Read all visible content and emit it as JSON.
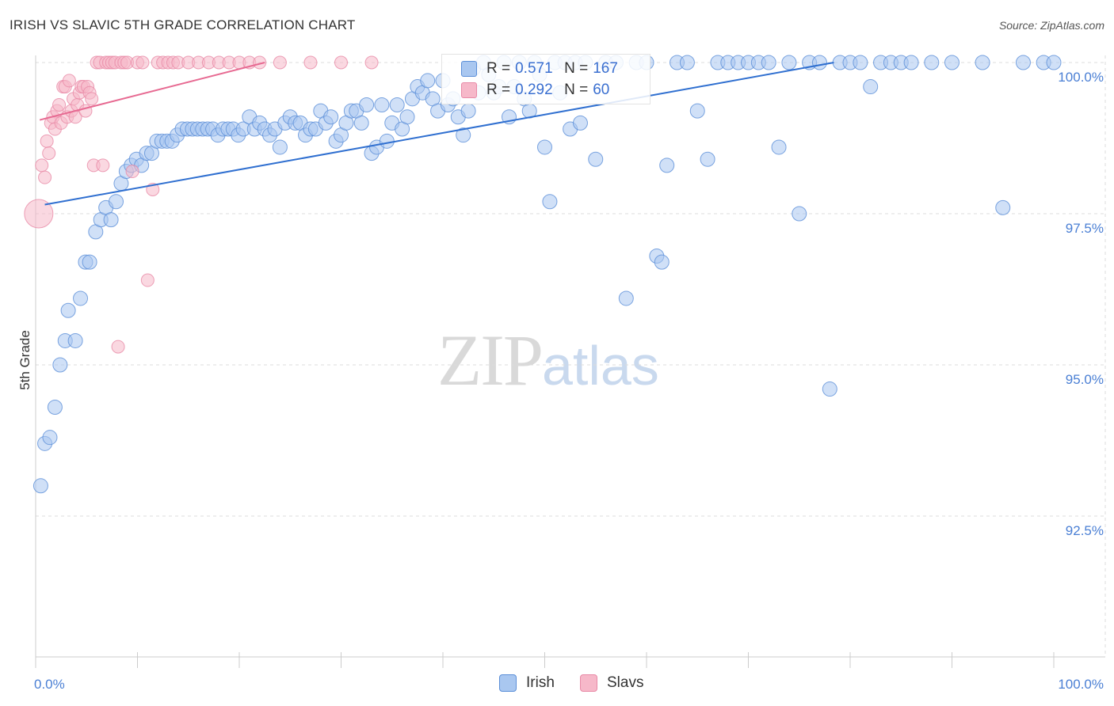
{
  "header": {
    "title": "IRISH VS SLAVIC 5TH GRADE CORRELATION CHART",
    "source": "Source: ZipAtlas.com"
  },
  "watermark": {
    "zip": "ZIP",
    "atlas": "atlas"
  },
  "legend": {
    "irish": {
      "r_label": "R =",
      "r_value": "0.571",
      "n_label": "N =",
      "n_value": "167"
    },
    "slavs": {
      "r_label": "R =",
      "r_value": "0.292",
      "n_label": "N =",
      "n_value": "60"
    }
  },
  "bottom_legend": {
    "irish": "Irish",
    "slavs": "Slavs"
  },
  "colors": {
    "irish_fill": "#a9c7f0",
    "irish_stroke": "#5b8fd8",
    "irish_line": "#2f6fd0",
    "slavs_fill": "#f6b8c9",
    "slavs_stroke": "#e889a6",
    "slavs_line": "#e76a92",
    "grid": "#dcdcdc",
    "tick_text": "#4a7fd4"
  },
  "chart_data": {
    "type": "scatter",
    "title": "IRISH VS SLAVIC 5TH GRADE CORRELATION CHART",
    "xlabel": "",
    "ylabel": "5th Grade",
    "xlim": [
      0,
      100
    ],
    "ylim": [
      90.8,
      100.6
    ],
    "x_tick_labels": [
      "0.0%",
      "100.0%"
    ],
    "y_ticks": [
      92.5,
      95.0,
      97.5,
      100.0
    ],
    "y_tick_labels": [
      "92.5%",
      "95.0%",
      "97.5%",
      "100.0%"
    ],
    "grid": true,
    "legend_position": "top-center",
    "series": [
      {
        "name": "Irish",
        "R": 0.571,
        "N": 167,
        "trend": [
          [
            0.9,
            97.65
          ],
          [
            78.4,
            100.0
          ]
        ],
        "points": [
          [
            0.5,
            93.0
          ],
          [
            0.9,
            93.7
          ],
          [
            1.4,
            93.8
          ],
          [
            1.9,
            94.3
          ],
          [
            2.4,
            95.0
          ],
          [
            2.9,
            95.4
          ],
          [
            3.2,
            95.9
          ],
          [
            3.9,
            95.4
          ],
          [
            4.4,
            96.1
          ],
          [
            4.9,
            96.7
          ],
          [
            5.3,
            96.7
          ],
          [
            5.9,
            97.2
          ],
          [
            6.4,
            97.4
          ],
          [
            6.9,
            97.6
          ],
          [
            7.4,
            97.4
          ],
          [
            7.9,
            97.7
          ],
          [
            8.4,
            98.0
          ],
          [
            8.9,
            98.2
          ],
          [
            9.4,
            98.3
          ],
          [
            9.9,
            98.4
          ],
          [
            10.4,
            98.3
          ],
          [
            10.9,
            98.5
          ],
          [
            11.4,
            98.5
          ],
          [
            11.9,
            98.7
          ],
          [
            12.4,
            98.7
          ],
          [
            12.9,
            98.7
          ],
          [
            13.4,
            98.7
          ],
          [
            13.9,
            98.8
          ],
          [
            14.4,
            98.9
          ],
          [
            14.9,
            98.9
          ],
          [
            15.4,
            98.9
          ],
          [
            15.9,
            98.9
          ],
          [
            16.4,
            98.9
          ],
          [
            16.9,
            98.9
          ],
          [
            17.4,
            98.9
          ],
          [
            17.9,
            98.8
          ],
          [
            18.4,
            98.9
          ],
          [
            18.9,
            98.9
          ],
          [
            19.4,
            98.9
          ],
          [
            19.9,
            98.8
          ],
          [
            20.4,
            98.9
          ],
          [
            21.0,
            99.1
          ],
          [
            21.5,
            98.9
          ],
          [
            22.0,
            99.0
          ],
          [
            22.5,
            98.9
          ],
          [
            23.0,
            98.8
          ],
          [
            23.5,
            98.9
          ],
          [
            24.0,
            98.6
          ],
          [
            24.5,
            99.0
          ],
          [
            25.0,
            99.1
          ],
          [
            25.5,
            99.0
          ],
          [
            26.0,
            99.0
          ],
          [
            26.5,
            98.8
          ],
          [
            27.0,
            98.9
          ],
          [
            27.5,
            98.9
          ],
          [
            28.0,
            99.2
          ],
          [
            28.5,
            99.0
          ],
          [
            29.0,
            99.1
          ],
          [
            29.5,
            98.7
          ],
          [
            30.0,
            98.8
          ],
          [
            30.5,
            99.0
          ],
          [
            31.0,
            99.2
          ],
          [
            31.5,
            99.2
          ],
          [
            32.0,
            99.0
          ],
          [
            32.5,
            99.3
          ],
          [
            33.0,
            98.5
          ],
          [
            33.5,
            98.6
          ],
          [
            34.0,
            99.3
          ],
          [
            34.5,
            98.7
          ],
          [
            35.0,
            99.0
          ],
          [
            35.5,
            99.3
          ],
          [
            36.0,
            98.9
          ],
          [
            36.5,
            99.1
          ],
          [
            37.0,
            99.4
          ],
          [
            37.5,
            99.6
          ],
          [
            38.0,
            99.5
          ],
          [
            38.5,
            99.7
          ],
          [
            39.0,
            99.4
          ],
          [
            39.5,
            99.2
          ],
          [
            40.0,
            99.7
          ],
          [
            40.5,
            99.3
          ],
          [
            41.0,
            99.4
          ],
          [
            41.5,
            99.1
          ],
          [
            42.0,
            98.8
          ],
          [
            42.5,
            99.2
          ],
          [
            43.0,
            99.9
          ],
          [
            43.5,
            99.5
          ],
          [
            44.0,
            100.0
          ],
          [
            44.5,
            99.8
          ],
          [
            45.0,
            99.5
          ],
          [
            45.5,
            99.6
          ],
          [
            46.0,
            100.0
          ],
          [
            46.5,
            99.1
          ],
          [
            47.0,
            99.6
          ],
          [
            47.5,
            100.0
          ],
          [
            48.0,
            99.4
          ],
          [
            48.5,
            99.2
          ],
          [
            49.0,
            100.0
          ],
          [
            49.5,
            99.8
          ],
          [
            50.0,
            98.6
          ],
          [
            50.5,
            97.7
          ],
          [
            51.0,
            100.0
          ],
          [
            51.5,
            99.5
          ],
          [
            52.0,
            100.0
          ],
          [
            52.5,
            98.9
          ],
          [
            53.0,
            100.0
          ],
          [
            53.5,
            99.0
          ],
          [
            54.0,
            100.0
          ],
          [
            55.0,
            98.4
          ],
          [
            56.0,
            100.0
          ],
          [
            57.0,
            100.0
          ],
          [
            58.0,
            96.1
          ],
          [
            59.0,
            100.0
          ],
          [
            60.0,
            100.0
          ],
          [
            61.0,
            96.8
          ],
          [
            61.5,
            96.7
          ],
          [
            62.0,
            98.3
          ],
          [
            63.0,
            100.0
          ],
          [
            64.0,
            100.0
          ],
          [
            65.0,
            99.2
          ],
          [
            66.0,
            98.4
          ],
          [
            67.0,
            100.0
          ],
          [
            68.0,
            100.0
          ],
          [
            69.0,
            100.0
          ],
          [
            70.0,
            100.0
          ],
          [
            71.0,
            100.0
          ],
          [
            72.0,
            100.0
          ],
          [
            73.0,
            98.6
          ],
          [
            74.0,
            100.0
          ],
          [
            75.0,
            97.5
          ],
          [
            76.0,
            100.0
          ],
          [
            77.0,
            100.0
          ],
          [
            78.0,
            94.6
          ],
          [
            79.0,
            100.0
          ],
          [
            80.0,
            100.0
          ],
          [
            81.0,
            100.0
          ],
          [
            82.0,
            99.6
          ],
          [
            83.0,
            100.0
          ],
          [
            84.0,
            100.0
          ],
          [
            85.0,
            100.0
          ],
          [
            86.0,
            100.0
          ],
          [
            88.0,
            100.0
          ],
          [
            90.0,
            100.0
          ],
          [
            93.0,
            100.0
          ],
          [
            95.0,
            97.6
          ],
          [
            97.0,
            100.0
          ],
          [
            99.0,
            100.0
          ],
          [
            100.0,
            100.0
          ]
        ]
      },
      {
        "name": "Slavs",
        "R": 0.292,
        "N": 60,
        "trend": [
          [
            0.4,
            99.05
          ],
          [
            22.5,
            100.0
          ]
        ],
        "points": [
          [
            0.3,
            97.5
          ],
          [
            0.6,
            98.3
          ],
          [
            0.9,
            98.1
          ],
          [
            1.1,
            98.7
          ],
          [
            1.3,
            98.5
          ],
          [
            1.5,
            99.0
          ],
          [
            1.7,
            99.1
          ],
          [
            1.9,
            98.9
          ],
          [
            2.1,
            99.2
          ],
          [
            2.3,
            99.3
          ],
          [
            2.5,
            99.0
          ],
          [
            2.7,
            99.6
          ],
          [
            2.9,
            99.6
          ],
          [
            3.1,
            99.1
          ],
          [
            3.3,
            99.7
          ],
          [
            3.5,
            99.2
          ],
          [
            3.7,
            99.4
          ],
          [
            3.9,
            99.1
          ],
          [
            4.1,
            99.3
          ],
          [
            4.3,
            99.5
          ],
          [
            4.5,
            99.6
          ],
          [
            4.7,
            99.6
          ],
          [
            4.9,
            99.2
          ],
          [
            5.1,
            99.6
          ],
          [
            5.3,
            99.5
          ],
          [
            5.5,
            99.4
          ],
          [
            5.7,
            98.3
          ],
          [
            6.0,
            100.0
          ],
          [
            6.3,
            100.0
          ],
          [
            6.6,
            98.3
          ],
          [
            6.9,
            100.0
          ],
          [
            7.2,
            100.0
          ],
          [
            7.5,
            100.0
          ],
          [
            7.8,
            100.0
          ],
          [
            8.1,
            95.3
          ],
          [
            8.4,
            100.0
          ],
          [
            8.7,
            100.0
          ],
          [
            9.0,
            100.0
          ],
          [
            9.5,
            98.2
          ],
          [
            10.0,
            100.0
          ],
          [
            10.5,
            100.0
          ],
          [
            11.0,
            96.4
          ],
          [
            11.5,
            97.9
          ],
          [
            12.0,
            100.0
          ],
          [
            12.5,
            100.0
          ],
          [
            13.0,
            100.0
          ],
          [
            13.5,
            100.0
          ],
          [
            14.0,
            100.0
          ],
          [
            15.0,
            100.0
          ],
          [
            16.0,
            100.0
          ],
          [
            17.0,
            100.0
          ],
          [
            18.0,
            100.0
          ],
          [
            19.0,
            100.0
          ],
          [
            20.0,
            100.0
          ],
          [
            21.0,
            100.0
          ],
          [
            22.0,
            100.0
          ],
          [
            24.0,
            100.0
          ],
          [
            27.0,
            100.0
          ],
          [
            30.0,
            100.0
          ],
          [
            33.0,
            100.0
          ]
        ]
      }
    ]
  }
}
